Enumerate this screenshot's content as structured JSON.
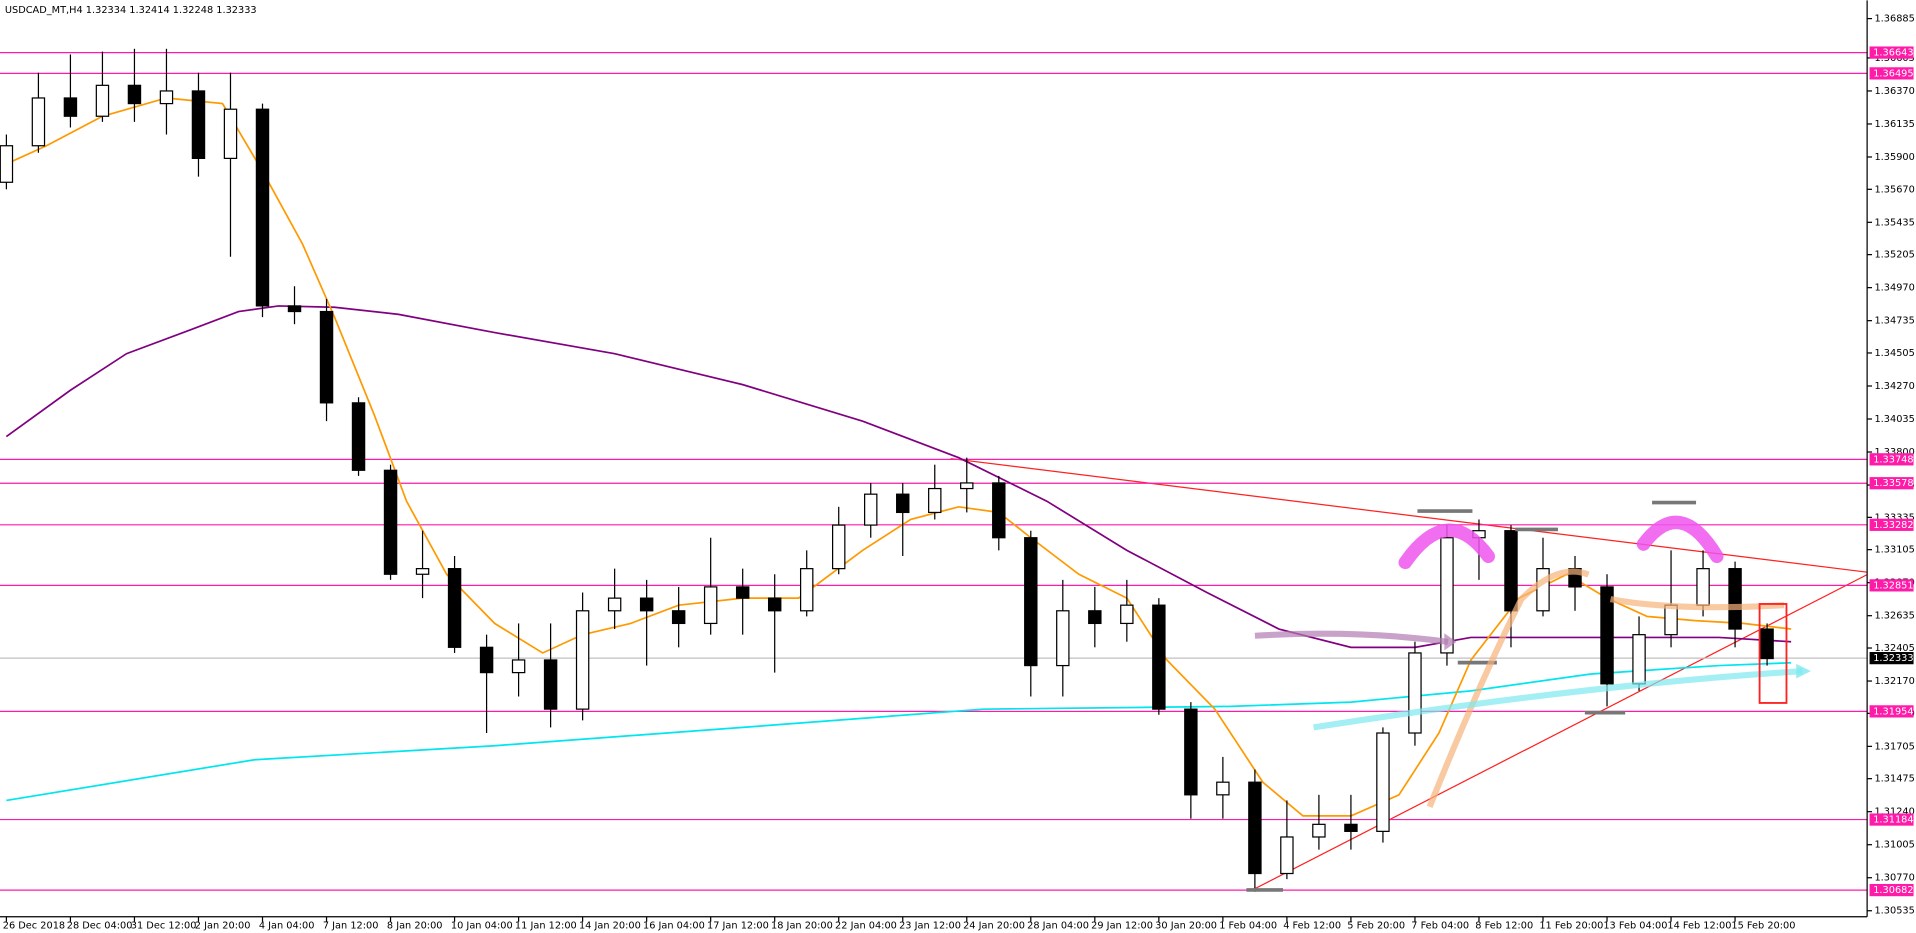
{
  "chart_data": {
    "type": "candlestick",
    "title": "USDCAD_MT,H4  1.32334 1.32414 1.32248 1.32333",
    "xlim": [
      -0.8,
      232.5
    ],
    "ylim": [
      1.30492,
      1.37015
    ],
    "xticks": [
      {
        "value": 0,
        "label": "26 Dec 2018"
      },
      {
        "value": 8,
        "label": "28 Dec 04:00"
      },
      {
        "value": 16,
        "label": "31 Dec 12:00"
      },
      {
        "value": 24,
        "label": "2 Jan 20:00"
      },
      {
        "value": 32,
        "label": "4 Jan 04:00"
      },
      {
        "value": 40,
        "label": "7 Jan 12:00"
      },
      {
        "value": 48,
        "label": "8 Jan 20:00"
      },
      {
        "value": 56,
        "label": "10 Jan 04:00"
      },
      {
        "value": 64,
        "label": "11 Jan 12:00"
      },
      {
        "value": 72,
        "label": "14 Jan 20:00"
      },
      {
        "value": 80,
        "label": "16 Jan 04:00"
      },
      {
        "value": 88,
        "label": "17 Jan 12:00"
      },
      {
        "value": 96,
        "label": "18 Jan 20:00"
      },
      {
        "value": 104,
        "label": "22 Jan 04:00"
      },
      {
        "value": 112,
        "label": "23 Jan 12:00"
      },
      {
        "value": 120,
        "label": "24 Jan 20:00"
      },
      {
        "value": 128,
        "label": "28 Jan 04:00"
      },
      {
        "value": 136,
        "label": "29 Jan 12:00"
      },
      {
        "value": 144,
        "label": "30 Jan 20:00"
      },
      {
        "value": 152,
        "label": "1 Feb 04:00"
      },
      {
        "value": 160,
        "label": "4 Feb 12:00"
      },
      {
        "value": 168,
        "label": "5 Feb 20:00"
      },
      {
        "value": 176,
        "label": "7 Feb 04:00"
      },
      {
        "value": 184,
        "label": "8 Feb 12:00"
      },
      {
        "value": 192,
        "label": "11 Feb 20:00"
      },
      {
        "value": 200,
        "label": "13 Feb 04:00"
      },
      {
        "value": 208,
        "label": "14 Feb 12:00"
      },
      {
        "value": 216,
        "label": "15 Feb 20:00"
      }
    ],
    "yticks": [
      1.36885,
      {
        "value": 1.36605,
        "label": "1.36605"
      },
      {
        "value": 1.3637,
        "label": "1.36370"
      },
      1.36135,
      {
        "value": 1.359,
        "label": "1.35900"
      },
      {
        "value": 1.3567,
        "label": "1.35670"
      },
      1.35435,
      1.35205,
      {
        "value": 1.3497,
        "label": "1.34970"
      },
      1.34735,
      1.34505,
      {
        "value": 1.3427,
        "label": "1.34270"
      },
      1.34035,
      {
        "value": 1.338,
        "label": "1.33800"
      },
      1.33565,
      1.33335,
      1.33105,
      {
        "value": 1.3287,
        "label": "1.32870"
      },
      1.32635,
      1.32405,
      {
        "value": 1.3217,
        "label": "1.32170"
      },
      {
        "value": 1.3194,
        "label": "1.31940"
      },
      1.31705,
      1.31475,
      {
        "value": 1.3124,
        "label": "1.31240"
      },
      1.31005,
      {
        "value": 1.3077,
        "label": "1.30770"
      },
      1.30535
    ],
    "levels": [
      1.36643,
      1.36495,
      1.33748,
      1.33578,
      1.33282,
      1.32851,
      1.31954,
      1.31184,
      1.30682
    ],
    "level_color": "#ff1aa8",
    "current_price": 1.32333,
    "up_color": "#ffffff",
    "down_color": "#000000",
    "x": [
      0,
      4,
      8,
      12,
      16,
      20,
      24,
      28,
      32,
      36,
      40,
      44,
      48,
      52,
      56,
      60,
      64,
      68,
      72,
      76,
      80,
      84,
      88,
      92,
      96,
      100,
      104,
      108,
      112,
      116,
      120,
      124,
      128,
      132,
      136,
      140,
      144,
      148,
      152,
      156,
      160,
      164,
      168,
      172,
      176,
      180,
      184,
      188,
      192,
      196,
      200,
      204,
      208,
      212,
      216,
      220
    ],
    "open": [
      1.3572,
      1.3598,
      1.3632,
      1.3619,
      1.3641,
      1.3628,
      1.3637,
      1.3589,
      1.3624,
      1.3484,
      1.348,
      1.3415,
      1.3367,
      1.3293,
      1.3297,
      1.3241,
      1.3223,
      1.3232,
      1.3197,
      1.3267,
      1.3276,
      1.3267,
      1.3258,
      1.3284,
      1.3276,
      1.3267,
      1.3297,
      1.3328,
      1.335,
      1.3337,
      1.3354,
      1.3358,
      1.3319,
      1.3228,
      1.3267,
      1.3258,
      1.3271,
      1.3197,
      1.3136,
      1.3145,
      1.308,
      1.3106,
      1.3115,
      1.311,
      1.318,
      1.3237,
      1.3319,
      1.3324,
      1.3267,
      1.3297,
      1.3284,
      1.3215,
      1.325,
      1.3271,
      1.3297,
      1.3254
    ],
    "high": [
      1.3606,
      1.365,
      1.3663,
      1.3665,
      1.3667,
      1.3667,
      1.365,
      1.365,
      1.3628,
      1.3498,
      1.3489,
      1.3419,
      1.3371,
      1.3324,
      1.3306,
      1.325,
      1.3258,
      1.3258,
      1.328,
      1.3297,
      1.3289,
      1.3284,
      1.3319,
      1.3297,
      1.3293,
      1.331,
      1.3341,
      1.3358,
      1.3358,
      1.3371,
      1.3376,
      1.3363,
      1.3324,
      1.3289,
      1.3284,
      1.3289,
      1.3276,
      1.3202,
      1.3163,
      1.3154,
      1.3132,
      1.3136,
      1.3136,
      1.3184,
      1.3245,
      1.3328,
      1.3332,
      1.3328,
      1.3319,
      1.3306,
      1.3293,
      1.3263,
      1.331,
      1.331,
      1.3302,
      1.3258
    ],
    "low": [
      1.3567,
      1.3593,
      1.3611,
      1.3615,
      1.3615,
      1.3606,
      1.3576,
      1.3519,
      1.3476,
      1.3471,
      1.3402,
      1.3363,
      1.3289,
      1.3276,
      1.3237,
      1.318,
      1.3206,
      1.3184,
      1.3189,
      1.3254,
      1.3228,
      1.3241,
      1.325,
      1.325,
      1.3223,
      1.3263,
      1.3293,
      1.3319,
      1.3306,
      1.3332,
      1.3337,
      1.331,
      1.3206,
      1.3206,
      1.3241,
      1.3245,
      1.3193,
      1.3119,
      1.3119,
      1.3067,
      1.3076,
      1.3097,
      1.3097,
      1.3102,
      1.3171,
      1.3228,
      1.3289,
      1.3241,
      1.3263,
      1.3267,
      1.3199,
      1.321,
      1.3241,
      1.3263,
      1.3241,
      1.3228
    ],
    "close": [
      1.3598,
      1.3632,
      1.3619,
      1.3641,
      1.3628,
      1.3637,
      1.3589,
      1.3624,
      1.3484,
      1.348,
      1.3415,
      1.3367,
      1.3293,
      1.3297,
      1.3241,
      1.3223,
      1.3232,
      1.3197,
      1.3267,
      1.3276,
      1.3267,
      1.3258,
      1.3284,
      1.3276,
      1.3267,
      1.3297,
      1.3328,
      1.335,
      1.3337,
      1.3354,
      1.3358,
      1.3319,
      1.3228,
      1.3267,
      1.3258,
      1.3271,
      1.3197,
      1.3136,
      1.3145,
      1.308,
      1.3106,
      1.3115,
      1.311,
      1.318,
      1.3237,
      1.3319,
      1.3324,
      1.3267,
      1.3297,
      1.3284,
      1.3215,
      1.325,
      1.3271,
      1.3297,
      1.3254,
      1.3233
    ],
    "moving_averages": [
      {
        "color": "#00e5ee",
        "x": [
          0,
          31,
          61,
          92,
          122,
          153,
          168,
          183,
          198,
          214,
          223
        ],
        "values": [
          1.3132,
          1.3161,
          1.3171,
          1.3184,
          1.3197,
          1.3199,
          1.3202,
          1.321,
          1.3222,
          1.3228,
          1.323
        ]
      },
      {
        "color": "#800080",
        "x": [
          0,
          8,
          15,
          23,
          29,
          34,
          41,
          49,
          61,
          76,
          92,
          107,
          119,
          130,
          140,
          150,
          159,
          168,
          176,
          183,
          192,
          202,
          214,
          223
        ],
        "values": [
          1.3391,
          1.3424,
          1.345,
          1.3467,
          1.348,
          1.3484,
          1.3483,
          1.3478,
          1.3465,
          1.345,
          1.3428,
          1.3402,
          1.3376,
          1.3345,
          1.331,
          1.328,
          1.3254,
          1.3241,
          1.3241,
          1.3248,
          1.3248,
          1.3248,
          1.3248,
          1.3245
        ]
      },
      {
        "color": "#ff9900",
        "x": [
          0,
          5,
          12,
          20,
          27,
          32,
          37,
          41,
          46,
          50,
          55,
          61,
          67,
          72,
          78,
          84,
          92,
          99,
          107,
          113,
          119,
          124,
          128,
          134,
          140,
          145,
          151,
          157,
          162,
          168,
          174,
          179,
          183,
          189,
          195,
          200,
          205,
          211,
          217,
          223
        ],
        "values": [
          1.3585,
          1.3598,
          1.3619,
          1.3632,
          1.3628,
          1.358,
          1.3528,
          1.3476,
          1.3406,
          1.3345,
          1.3293,
          1.3258,
          1.3237,
          1.325,
          1.3258,
          1.3271,
          1.3276,
          1.3276,
          1.331,
          1.3332,
          1.3341,
          1.3337,
          1.3319,
          1.3293,
          1.3276,
          1.3232,
          1.3197,
          1.3145,
          1.3121,
          1.3121,
          1.3136,
          1.318,
          1.3232,
          1.3276,
          1.3293,
          1.3276,
          1.3263,
          1.326,
          1.3258,
          1.3254
        ]
      }
    ]
  }
}
